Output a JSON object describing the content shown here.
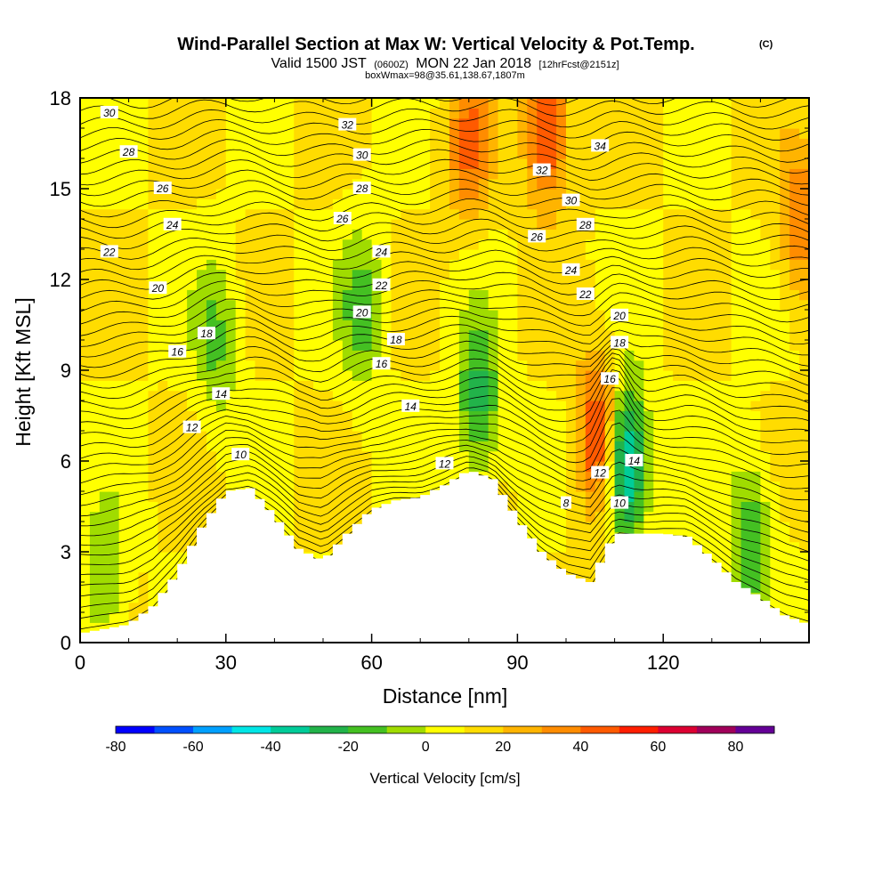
{
  "title": {
    "main": "Wind-Parallel Section at Max W: Vertical Velocity & Pot.Temp.",
    "copyright": "(C)",
    "valid_a": "Valid 1500 JST",
    "valid_z": "(0600Z)",
    "valid_b": "MON 22 Jan 2018",
    "fcst": "[12hrFcst@2151z]",
    "box": "boxWmax=98@35.61,138.67,1807m"
  },
  "chart_data": {
    "type": "heatmap",
    "xlabel": "Distance [nm]",
    "ylabel": "Height [Kft MSL]",
    "xlim": [
      0,
      150
    ],
    "ylim": [
      0,
      18
    ],
    "x_ticks": [
      "0",
      "30",
      "60",
      "90",
      "120"
    ],
    "y_ticks": [
      "0",
      "3",
      "6",
      "9",
      "12",
      "15",
      "18"
    ],
    "terrain": {
      "x": [
        0,
        10,
        15,
        20,
        25,
        30,
        35,
        40,
        45,
        50,
        55,
        60,
        65,
        70,
        75,
        80,
        85,
        90,
        95,
        100,
        105,
        110,
        115,
        120,
        125,
        130,
        135,
        140,
        145,
        150
      ],
      "height": [
        0.3,
        0.6,
        1.2,
        2.3,
        3.8,
        5.0,
        5.1,
        4.2,
        3.1,
        2.7,
        3.6,
        4.4,
        4.7,
        4.8,
        5.2,
        5.7,
        5.4,
        4.1,
        3.0,
        2.3,
        2.0,
        3.6,
        3.6,
        3.6,
        3.5,
        2.8,
        2.0,
        1.5,
        0.9,
        0.6
      ]
    },
    "vertical_velocity_cm_s": {
      "background": 10,
      "features": [
        {
          "x": 107,
          "height": 6.8,
          "value": 60
        },
        {
          "x": 112,
          "height": 6.0,
          "value": -55
        },
        {
          "x": 96,
          "height": 17.0,
          "value": 55
        },
        {
          "x": 80,
          "height": 16.5,
          "value": 40
        },
        {
          "x": 148,
          "height": 14.0,
          "value": 40
        },
        {
          "x": 82,
          "height": 8.0,
          "value": -25
        },
        {
          "x": 58,
          "height": 11.0,
          "value": -15
        },
        {
          "x": 28,
          "height": 10.0,
          "value": -12
        },
        {
          "x": 138,
          "height": 3.5,
          "value": -20
        },
        {
          "x": 5,
          "height": 2.0,
          "value": -10
        }
      ]
    },
    "potential_temperature_labels": [
      {
        "text": "30",
        "x": 6,
        "height": 17.5
      },
      {
        "text": "28",
        "x": 10,
        "height": 16.2
      },
      {
        "text": "26",
        "x": 17,
        "height": 15.0
      },
      {
        "text": "24",
        "x": 19,
        "height": 13.8
      },
      {
        "text": "22",
        "x": 6,
        "height": 12.9
      },
      {
        "text": "20",
        "x": 16,
        "height": 11.7
      },
      {
        "text": "18",
        "x": 26,
        "height": 10.2
      },
      {
        "text": "16",
        "x": 20,
        "height": 9.6
      },
      {
        "text": "14",
        "x": 29,
        "height": 8.2
      },
      {
        "text": "12",
        "x": 23,
        "height": 7.1
      },
      {
        "text": "10",
        "x": 33,
        "height": 6.2
      },
      {
        "text": "32",
        "x": 55,
        "height": 17.1
      },
      {
        "text": "30",
        "x": 58,
        "height": 16.1
      },
      {
        "text": "28",
        "x": 58,
        "height": 15.0
      },
      {
        "text": "26",
        "x": 54,
        "height": 14.0
      },
      {
        "text": "24",
        "x": 62,
        "height": 12.9
      },
      {
        "text": "22",
        "x": 62,
        "height": 11.8
      },
      {
        "text": "20",
        "x": 58,
        "height": 10.9
      },
      {
        "text": "18",
        "x": 65,
        "height": 10.0
      },
      {
        "text": "16",
        "x": 62,
        "height": 9.2
      },
      {
        "text": "14",
        "x": 68,
        "height": 7.8
      },
      {
        "text": "12",
        "x": 75,
        "height": 5.9
      },
      {
        "text": "34",
        "x": 107,
        "height": 16.4
      },
      {
        "text": "32",
        "x": 95,
        "height": 15.6
      },
      {
        "text": "30",
        "x": 101,
        "height": 14.6
      },
      {
        "text": "28",
        "x": 104,
        "height": 13.8
      },
      {
        "text": "26",
        "x": 94,
        "height": 13.4
      },
      {
        "text": "24",
        "x": 101,
        "height": 12.3
      },
      {
        "text": "22",
        "x": 104,
        "height": 11.5
      },
      {
        "text": "20",
        "x": 111,
        "height": 10.8
      },
      {
        "text": "18",
        "x": 111,
        "height": 9.9
      },
      {
        "text": "16",
        "x": 109,
        "height": 8.7
      },
      {
        "text": "14",
        "x": 114,
        "height": 6.0
      },
      {
        "text": "12",
        "x": 107,
        "height": 5.6
      },
      {
        "text": "10",
        "x": 111,
        "height": 4.6
      },
      {
        "text": "8",
        "x": 100,
        "height": 4.6
      }
    ],
    "colorbar": {
      "label": "Vertical Velocity [cm/s]",
      "min": -80,
      "max": 90,
      "step": 10,
      "tick_labels": [
        "-80",
        "-60",
        "-40",
        "-20",
        "0",
        "20",
        "40",
        "60",
        "80"
      ],
      "colors": [
        "#0000ff",
        "#0050ff",
        "#00a0ff",
        "#00e6e6",
        "#00cc99",
        "#22b34a",
        "#44c022",
        "#a0dc00",
        "#ffff00",
        "#ffdc00",
        "#ffb400",
        "#ff8c00",
        "#ff5a00",
        "#ff1e00",
        "#dc0032",
        "#a0005a",
        "#640096"
      ]
    }
  }
}
